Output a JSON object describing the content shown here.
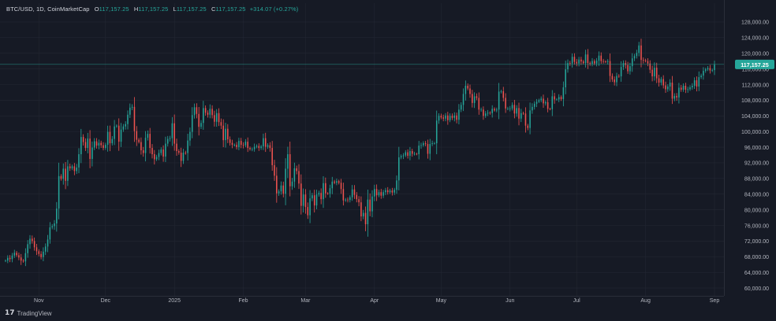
{
  "legend": {
    "symbol": "BTC/USD, 1D, CoinMarketCap",
    "o_label": "O",
    "o": "117,157.25",
    "h_label": "H",
    "h": "117,157.25",
    "l_label": "L",
    "l": "117,157.25",
    "c_label": "C",
    "c": "117,157.25",
    "change": "+314.07 (+0.27%)"
  },
  "last_price_label": "117,157.25",
  "brand": {
    "name": "TradingView",
    "icon": "tradingview-logo-icon"
  },
  "colors": {
    "up": "#26a69a",
    "down": "#ef5350",
    "background": "#161a25",
    "grid": "#232733",
    "text": "#b2b5be"
  },
  "chart_data": {
    "type": "candlestick",
    "title": "BTC/USD, 1D, CoinMarketCap",
    "xlabel": "",
    "ylabel": "",
    "ylim": [
      58000,
      130000
    ],
    "last_price": 117157.25,
    "y_ticks": [
      "60,000.00",
      "64,000.00",
      "68,000.00",
      "72,000.00",
      "76,000.00",
      "80,000.00",
      "84,000.00",
      "88,000.00",
      "92,000.00",
      "96,000.00",
      "100,000.00",
      "104,000.00",
      "108,000.00",
      "112,000.00",
      "116,000.00",
      "120,000.00",
      "124,000.00",
      "128,000.00"
    ],
    "x_ticks": [
      "Nov",
      "Dec",
      "2025",
      "Feb",
      "Mar",
      "Apr",
      "May",
      "Jun",
      "Jul",
      "Aug",
      "Sep"
    ],
    "tick_dates": [
      "2024-11-01",
      "2024-12-01",
      "2025-01-01",
      "2025-02-01",
      "2025-03-01",
      "2025-04-01",
      "2025-05-01",
      "2025-06-01",
      "2025-07-01",
      "2025-08-01",
      "2025-09-01"
    ],
    "start_date": "2024-10-17",
    "closes": [
      67000,
      67700,
      67400,
      68300,
      69000,
      68400,
      67800,
      67000,
      66800,
      68900,
      71200,
      72600,
      72000,
      70400,
      69400,
      68700,
      67900,
      69300,
      70600,
      72400,
      75500,
      75800,
      76500,
      80300,
      88600,
      87900,
      90500,
      87400,
      91100,
      90600,
      91100,
      89900,
      90800,
      94200,
      98600,
      97300,
      95800,
      98200,
      93000,
      95900,
      97500,
      96400,
      97100,
      96500,
      95800,
      96600,
      99900,
      97000,
      98100,
      101300,
      101500,
      97400,
      100500,
      101300,
      101900,
      104300,
      106100,
      106300,
      100100,
      97900,
      97300,
      95200,
      94500,
      98400,
      99400,
      95800,
      94200,
      92900,
      93500,
      94500,
      95400,
      93600,
      96900,
      98100,
      98300,
      102100,
      96900,
      95000,
      94600,
      92500,
      94600,
      94500,
      97700,
      99900,
      104200,
      106200,
      104500,
      101200,
      102200,
      106000,
      104800,
      104300,
      105800,
      104200,
      102500,
      104700,
      102400,
      101500,
      97800,
      100700,
      98000,
      97100,
      96600,
      96600,
      96000,
      97600,
      96600,
      96500,
      97400,
      95800,
      95500,
      95500,
      96100,
      96300,
      95800,
      96200,
      98300,
      96100,
      96500,
      95800,
      91400,
      88700,
      84200,
      84700,
      86200,
      84100,
      90500,
      94200,
      86000,
      87200,
      90600,
      89900,
      86700,
      81000,
      83900,
      80700,
      78600,
      82900,
      83700,
      81100,
      83900,
      84300,
      82700,
      86800,
      84200,
      84100,
      85500,
      87200,
      86900,
      87300,
      86900,
      85300,
      82400,
      82600,
      82500,
      83200,
      85200,
      83800,
      82700,
      81900,
      78300,
      79200,
      76300,
      82600,
      79600,
      83400,
      85300,
      83700,
      84500,
      83600,
      84500,
      85000,
      84500,
      84900,
      84400,
      85100,
      87500,
      93400,
      93700,
      93900,
      94700,
      93800,
      95000,
      94300,
      94300,
      94200,
      96400,
      96500,
      97000,
      96800,
      94300,
      96800,
      97000,
      97000,
      102800,
      104000,
      103600,
      103300,
      104100,
      102900,
      104000,
      103500,
      104100,
      103000,
      105600,
      106800,
      109600,
      111700,
      111000,
      109600,
      107300,
      109000,
      108600,
      105600,
      105600,
      104000,
      104600,
      104800,
      104700,
      105800,
      105400,
      105600,
      110200,
      110300,
      108600,
      105900,
      105900,
      105900,
      106800,
      104600,
      106000,
      103300,
      104700,
      104600,
      101500,
      100900,
      105400,
      106300,
      107100,
      107600,
      108000,
      108400,
      107200,
      107500,
      105800,
      105700,
      109000,
      108200,
      108200,
      108800,
      108300,
      111300,
      115900,
      117500,
      117400,
      119100,
      117800,
      117400,
      118400,
      117900,
      117500,
      119700,
      117500,
      117300,
      118000,
      117400,
      118100,
      119400,
      118000,
      117900,
      117800,
      118000,
      114200,
      113300,
      112600,
      114200,
      114100,
      116500,
      117500,
      117000,
      115400,
      116700,
      118700,
      119300,
      120100,
      122000,
      118300,
      118200,
      118000,
      117400,
      115800,
      114100,
      116300,
      113600,
      112500,
      113400,
      111800,
      110800,
      111500,
      112500,
      108400,
      109100,
      108700,
      111200,
      110700,
      111700,
      110700,
      110800,
      111300,
      111700,
      113100,
      111500,
      113900,
      114300,
      115500,
      115900,
      116200,
      115600,
      115700,
      117100
    ]
  }
}
